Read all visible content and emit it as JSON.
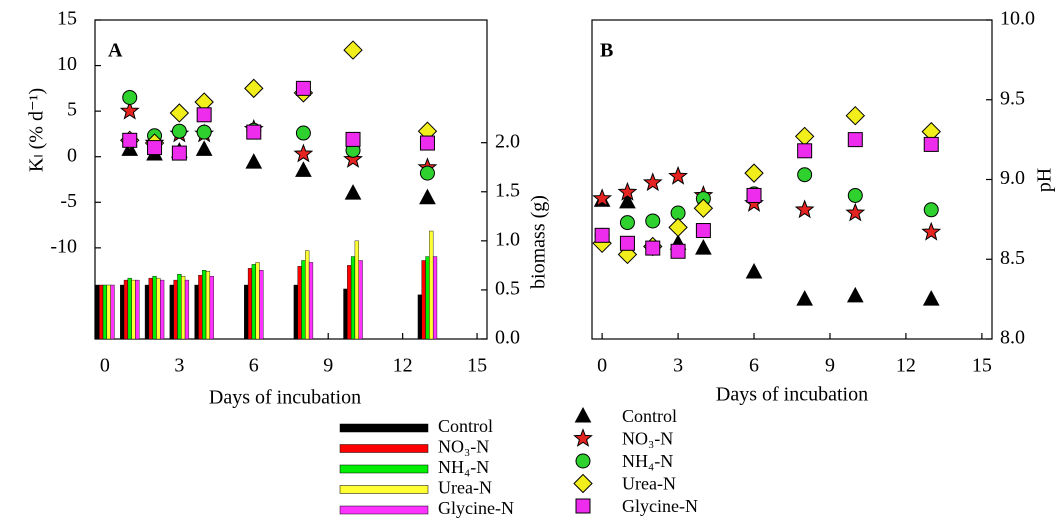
{
  "chart_data": [
    {
      "type": "scatter",
      "panel_label": "A",
      "xlabel": "Days of incubation",
      "ylabel": "Kₗ (% d⁻¹)",
      "y2label": "biomass (g)",
      "xlim": [
        -0.4,
        15.4
      ],
      "xticks": [
        0,
        3,
        6,
        9,
        12,
        15
      ],
      "ylim": [
        -20,
        15
      ],
      "yticks": [
        -10,
        -5,
        0,
        5,
        10,
        15
      ],
      "y2lim": [
        0,
        3.25
      ],
      "y2ticks": [
        {
          "value": 0,
          "label": "0.0"
        },
        0.5,
        {
          "value": 1,
          "label": "1.0"
        },
        1.5,
        {
          "value": 2,
          "label": "2.0"
        }
      ],
      "x": [
        1,
        2,
        3,
        4,
        6,
        8,
        10,
        13
      ],
      "series": [
        {
          "marker": "triangle",
          "color": "#000000",
          "values": [
            0.8,
            0.3,
            0.6,
            0.8,
            -0.6,
            -1.5,
            -4,
            -4.5
          ]
        },
        {
          "marker": "star",
          "color": "#e52421",
          "values": [
            5,
            1.5,
            2.5,
            2.5,
            3,
            0.3,
            -0.3,
            -1.2
          ]
        },
        {
          "marker": "circle",
          "color": "#2fd12f",
          "values": [
            6.5,
            2.3,
            2.8,
            2.7,
            2.9,
            2.6,
            0.7,
            -1.8
          ]
        },
        {
          "marker": "diamond",
          "color": "#f2ee1c",
          "values": [
            1.8,
            1.5,
            4.8,
            6,
            7.5,
            7,
            11.7,
            2.8
          ]
        },
        {
          "marker": "square",
          "color": "#ee2cee",
          "values": [
            1.8,
            1,
            0.4,
            4.6,
            2.7,
            7.5,
            1.9,
            1.5
          ]
        }
      ],
      "bars": {
        "x": [
          0,
          1,
          2,
          3,
          4,
          6,
          8,
          10,
          13
        ],
        "series": [
          {
            "name": "Control",
            "color": "#000000",
            "axis": "y2",
            "values": [
              0.55,
              0.55,
              0.55,
              0.55,
              0.55,
              0.55,
              0.55,
              0.51,
              0.45
            ]
          },
          {
            "name": "NO₃-N",
            "color": "#ff0000",
            "axis": "y2",
            "values": [
              0.55,
              0.6,
              0.62,
              0.6,
              0.65,
              0.72,
              0.74,
              0.75,
              0.8
            ]
          },
          {
            "name": "NH₄-N",
            "color": "#00ee00",
            "axis": "y2",
            "values": [
              0.55,
              0.62,
              0.64,
              0.66,
              0.7,
              0.76,
              0.8,
              0.84,
              0.84
            ]
          },
          {
            "name": "Urea-N",
            "color": "#ffff33",
            "axis": "y2",
            "values": [
              0.55,
              0.6,
              0.62,
              0.64,
              0.69,
              0.78,
              0.9,
              1.0,
              1.1
            ]
          },
          {
            "name": "Glycine-N",
            "color": "#ff33ff",
            "axis": "y2",
            "values": [
              0.55,
              0.6,
              0.6,
              0.6,
              0.64,
              0.7,
              0.78,
              0.8,
              0.84
            ]
          }
        ]
      }
    },
    {
      "type": "scatter",
      "panel_label": "B",
      "xlabel": "Days of incubation",
      "ylabel": "pH",
      "xlim": [
        -0.4,
        15.4
      ],
      "xticks": [
        0,
        3,
        6,
        9,
        12,
        15
      ],
      "ylim": [
        8,
        10
      ],
      "yticks": [
        {
          "value": 8,
          "label": "8.0"
        },
        8.5,
        {
          "value": 9,
          "label": "9.0"
        },
        9.5,
        {
          "value": 10,
          "label": "10.0"
        }
      ],
      "x": [
        0,
        1,
        2,
        3,
        4,
        6,
        8,
        10,
        13
      ],
      "series": [
        {
          "name": "Control",
          "marker": "triangle",
          "color": "#000000",
          "values": [
            8.87,
            8.86,
            null,
            8.6,
            8.57,
            8.42,
            8.25,
            8.27,
            8.25
          ]
        },
        {
          "name": "NO₃-N",
          "marker": "star",
          "color": "#e52421",
          "values": [
            8.88,
            8.92,
            8.98,
            9.02,
            8.9,
            8.85,
            8.81,
            8.79,
            8.67
          ]
        },
        {
          "name": "NH₄-N",
          "marker": "circle",
          "color": "#2fd12f",
          "values": [
            8.65,
            8.73,
            8.74,
            8.79,
            8.88,
            8.91,
            9.03,
            8.9,
            8.81
          ]
        },
        {
          "name": "Urea-N",
          "marker": "diamond",
          "color": "#f2ee1c",
          "values": [
            8.6,
            8.53,
            8.58,
            8.7,
            8.82,
            9.04,
            9.27,
            9.4,
            9.3
          ]
        },
        {
          "name": "Glycine-N",
          "marker": "square",
          "color": "#ee2cee",
          "values": [
            8.65,
            8.6,
            8.57,
            8.55,
            8.68,
            8.9,
            9.18,
            9.25,
            9.22
          ]
        }
      ]
    }
  ]
}
